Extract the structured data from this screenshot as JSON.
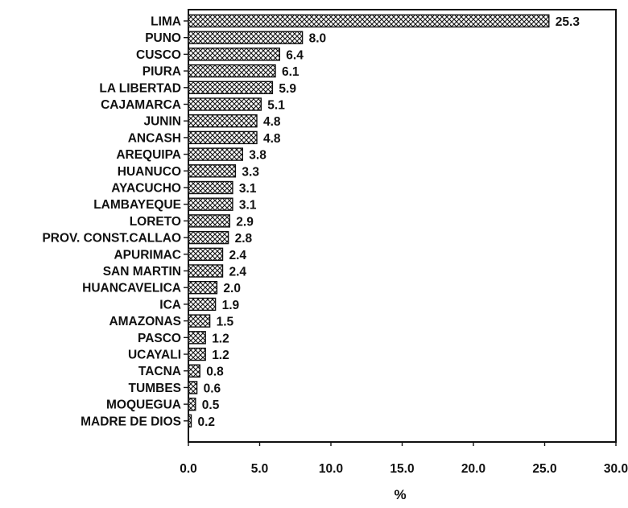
{
  "chart_data": {
    "type": "bar",
    "orientation": "horizontal",
    "title": "",
    "xlabel": "%",
    "ylabel": "",
    "xlim": [
      0,
      30
    ],
    "xticks": [
      "0.0",
      "5.0",
      "10.0",
      "15.0",
      "20.0",
      "25.0",
      "30.0"
    ],
    "grid": false,
    "categories": [
      "LIMA",
      "PUNO",
      "CUSCO",
      "PIURA",
      "LA LIBERTAD",
      "CAJAMARCA",
      "JUNIN",
      "ANCASH",
      "AREQUIPA",
      "HUANUCO",
      "AYACUCHO",
      "LAMBAYEQUE",
      "LORETO",
      "PROV. CONST.CALLAO",
      "APURIMAC",
      "SAN MARTIN",
      "HUANCAVELICA",
      "ICA",
      "AMAZONAS",
      "PASCO",
      "UCAYALI",
      "TACNA",
      "TUMBES",
      "MOQUEGUA",
      "MADRE DE DIOS"
    ],
    "values": [
      25.3,
      8.0,
      6.4,
      6.1,
      5.9,
      5.1,
      4.8,
      4.8,
      3.8,
      3.3,
      3.1,
      3.1,
      2.9,
      2.8,
      2.4,
      2.4,
      2.0,
      1.9,
      1.5,
      1.2,
      1.2,
      0.8,
      0.6,
      0.5,
      0.2
    ],
    "value_labels": [
      "25.3",
      "8.0",
      "6.4",
      "6.1",
      "5.9",
      "5.1",
      "4.8",
      "4.8",
      "3.8",
      "3.3",
      "3.1",
      "3.1",
      "2.9",
      "2.8",
      "2.4",
      "2.4",
      "2.0",
      "1.9",
      "1.5",
      "1.2",
      "1.2",
      "0.8",
      "0.6",
      "0.5",
      "0.2"
    ],
    "bar_pattern": "crosshatch"
  }
}
